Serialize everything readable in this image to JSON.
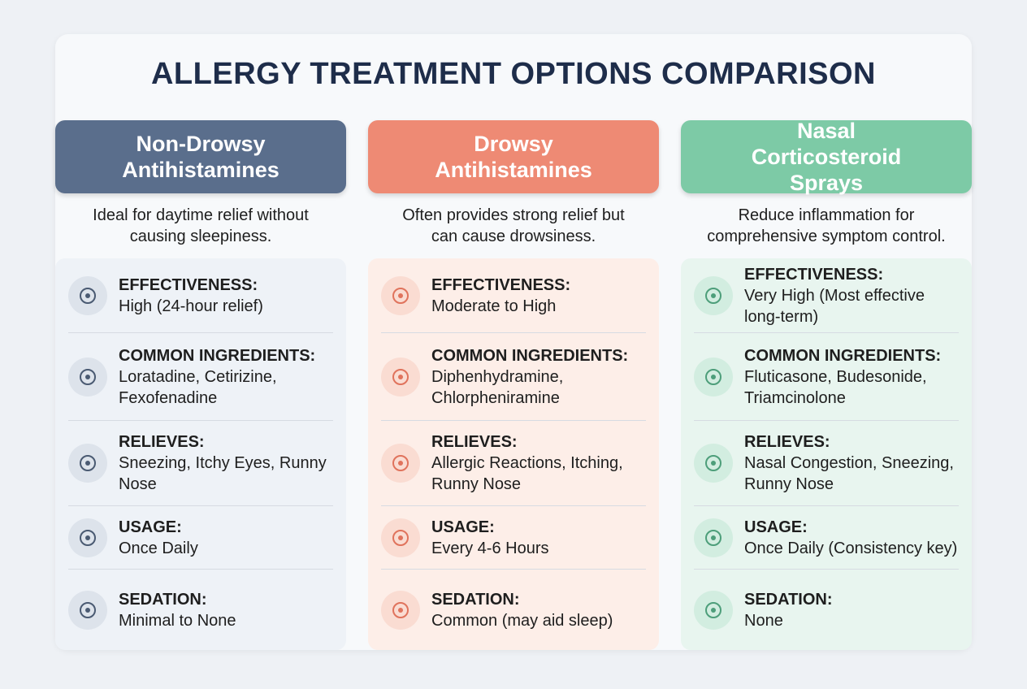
{
  "title": "ALLERGY TREATMENT OPTIONS COMPARISON",
  "columns": [
    {
      "header": "Non-Drowsy Antihistamines",
      "description": "Ideal for daytime relief without causing sleepiness.",
      "rows": [
        {
          "label": "EFFECTIVENESS:",
          "value": "High (24-hour relief)"
        },
        {
          "label": "COMMON INGREDIENTS:",
          "value": "Loratadine, Cetirizine, Fexofenadine"
        },
        {
          "label": "RELIEVES:",
          "value": "Sneezing, Itchy Eyes, Runny Nose"
        },
        {
          "label": "USAGE:",
          "value": "Once Daily"
        },
        {
          "label": "SEDATION:",
          "value": "Minimal to None"
        }
      ]
    },
    {
      "header": "Drowsy Antihistamines",
      "description": "Often provides strong relief but can cause drowsiness.",
      "rows": [
        {
          "label": "EFFECTIVENESS:",
          "value": "Moderate to High"
        },
        {
          "label": "COMMON INGREDIENTS:",
          "value": "Diphenhydramine, Chlorpheniramine"
        },
        {
          "label": "RELIEVES:",
          "value": "Allergic Reactions, Itching, Runny Nose"
        },
        {
          "label": "USAGE:",
          "value": "Every 4-6 Hours"
        },
        {
          "label": "SEDATION:",
          "value": "Common (may aid sleep)"
        }
      ]
    },
    {
      "header": "Nasal Corticosteroid Sprays",
      "description": "Reduce inflammation for comprehensive symptom control.",
      "rows": [
        {
          "label": "EFFECTIVENESS:",
          "value": "Very High (Most effective long-term)"
        },
        {
          "label": "COMMON INGREDIENTS:",
          "value": "Fluticasone, Budesonide, Triamcinolone"
        },
        {
          "label": "RELIEVES:",
          "value": "Nasal Congestion, Sneezing, Runny Nose"
        },
        {
          "label": "USAGE:",
          "value": "Once Daily (Consistency key)"
        },
        {
          "label": "SEDATION:",
          "value": "None"
        }
      ]
    }
  ]
}
